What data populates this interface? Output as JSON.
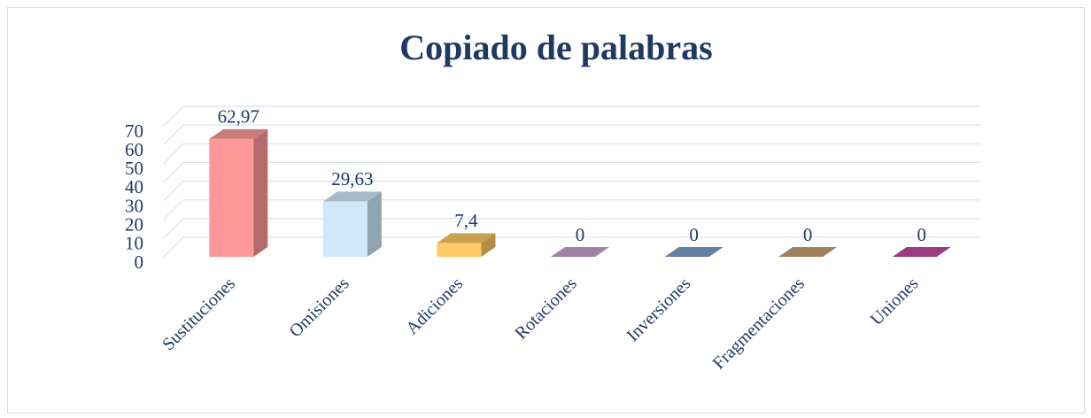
{
  "chart_data": {
    "type": "bar3d",
    "title": "Copiado de palabras",
    "categories": [
      "Sustituciones",
      "Omisiones",
      "Adiciones",
      "Rotaciones",
      "Inversiones",
      "Fragmentaciones",
      "Uniones"
    ],
    "values": [
      62.97,
      29.63,
      7.4,
      0,
      0,
      0,
      0
    ],
    "value_labels": [
      "62,97",
      "29,63",
      "7,4",
      "0",
      "0",
      "0",
      "0"
    ],
    "colors": [
      "#ff9999",
      "#cfe9fb",
      "#ffc966",
      "#c9a0cf",
      "#7aa0c8",
      "#c9a074",
      "#c24aa0"
    ],
    "ylim": [
      0,
      70
    ],
    "yticks": [
      0,
      10,
      20,
      30,
      40,
      50,
      60,
      70
    ],
    "grid": true
  }
}
